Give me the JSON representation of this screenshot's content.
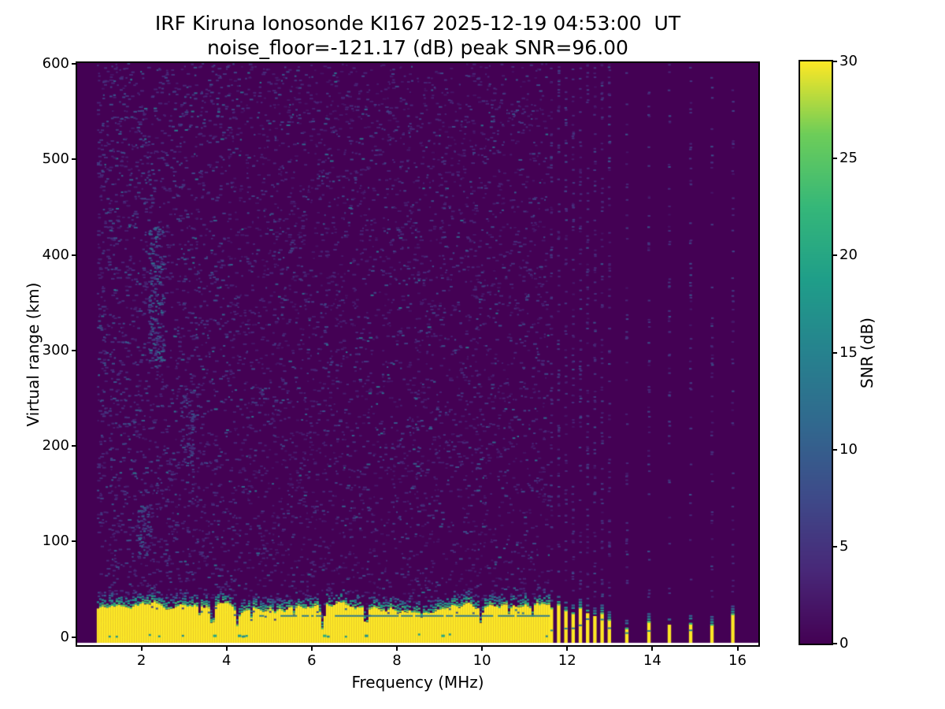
{
  "header": {
    "title_line1": "IRF Kiruna Ionosonde KI167 2025-12-19 04:53:00  UT",
    "title_line2": "noise_floor=-121.17 (dB) peak SNR=96.00"
  },
  "chart_data": {
    "type": "heatmap",
    "title": "IRF Kiruna Ionosonde KI167 2025-12-19 04:53:00  UT",
    "subtitle": "noise_floor=-121.17 (dB) peak SNR=96.00",
    "station": "KI167",
    "instrument": "IRF Kiruna Ionosonde",
    "timestamp_ut": "2025-12-19 04:53:00 UT",
    "noise_floor_db": -121.17,
    "peak_snr_db": 96.0,
    "xlabel": "Frequency (MHz)",
    "ylabel": "Virtual range (km)",
    "colorbar_label": "SNR (dB)",
    "xlim": [
      0.49,
      16.49
    ],
    "ylim": [
      -8.5,
      601
    ],
    "clim": [
      0,
      30
    ],
    "x_ticks": [
      2,
      4,
      6,
      8,
      10,
      12,
      14,
      16
    ],
    "y_ticks": [
      0,
      100,
      200,
      300,
      400,
      500,
      600
    ],
    "colorbar_ticks": [
      0,
      5,
      10,
      15,
      20,
      25,
      30
    ],
    "grid": false,
    "colormap": {
      "name": "viridis",
      "anchors": [
        [
          68,
          1,
          84
        ],
        [
          72,
          40,
          120
        ],
        [
          62,
          74,
          137
        ],
        [
          49,
          104,
          142
        ],
        [
          38,
          130,
          142
        ],
        [
          31,
          158,
          137
        ],
        [
          53,
          183,
          121
        ],
        [
          109,
          205,
          89
        ],
        [
          253,
          231,
          37
        ]
      ],
      "background_hex": "#440154",
      "peak_hex": "#fde725"
    },
    "sweep": {
      "data_start_mhz": 0.95,
      "continuous_sweep_end_mhz": 11.55,
      "mesh_bottom_km": -6,
      "white_gap_below_data": true
    },
    "ground_echo": {
      "freq_span_mhz": [
        0.95,
        11.55
      ],
      "top_km_mean": 31,
      "top_km_range": [
        25,
        39
      ],
      "snr_db": 30,
      "transition_thickness_km": 16,
      "teal_line": {
        "km": 23,
        "freq_span_mhz": [
          4.6,
          11.55
        ],
        "snr_db": 13.5
      },
      "notches": [
        {
          "f_mhz": 3.33,
          "min_km": 22,
          "halfwidth_mhz": 0.05
        },
        {
          "f_mhz": 3.64,
          "min_km": 7,
          "halfwidth_mhz": 0.09
        },
        {
          "f_mhz": 4.23,
          "min_km": 10,
          "halfwidth_mhz": 0.07
        },
        {
          "f_mhz": 4.55,
          "min_km": 19,
          "halfwidth_mhz": 0.05
        },
        {
          "f_mhz": 5.55,
          "min_km": 22,
          "halfwidth_mhz": 0.05
        },
        {
          "f_mhz": 6.23,
          "min_km": 6,
          "halfwidth_mhz": 0.09
        },
        {
          "f_mhz": 7.25,
          "min_km": 8,
          "halfwidth_mhz": 0.08
        },
        {
          "f_mhz": 8.55,
          "min_km": 20,
          "halfwidth_mhz": 0.05
        },
        {
          "f_mhz": 9.95,
          "min_km": 12,
          "halfwidth_mhz": 0.07
        },
        {
          "f_mhz": 10.62,
          "min_km": 21,
          "halfwidth_mhz": 0.05
        },
        {
          "f_mhz": 11.15,
          "min_km": 19,
          "halfwidth_mhz": 0.05
        }
      ],
      "bottom_flecks_mhz": [
        3.72,
        4.3,
        6.3,
        7.28,
        9.08
      ]
    },
    "rfi_channels": {
      "dense": [
        {
          "f_mhz": 11.63,
          "top_km": 30
        },
        {
          "f_mhz": 11.8,
          "top_km": 34
        },
        {
          "f_mhz": 11.97,
          "top_km": 28
        },
        {
          "f_mhz": 12.14,
          "top_km": 25
        },
        {
          "f_mhz": 12.31,
          "top_km": 31
        },
        {
          "f_mhz": 12.48,
          "top_km": 25
        },
        {
          "f_mhz": 12.65,
          "top_km": 22
        },
        {
          "f_mhz": 12.82,
          "top_km": 25
        },
        {
          "f_mhz": 12.99,
          "top_km": 18
        }
      ],
      "sparse": [
        {
          "f_mhz": 13.4,
          "top_km": 9
        },
        {
          "f_mhz": 13.92,
          "top_km": 16
        },
        {
          "f_mhz": 14.4,
          "top_km": 13
        },
        {
          "f_mhz": 14.9,
          "top_km": 14
        },
        {
          "f_mhz": 15.4,
          "top_km": 13
        },
        {
          "f_mhz": 15.89,
          "top_km": 24
        }
      ]
    },
    "noise": {
      "count": 6500,
      "low_freq_bias_exp": 1.15,
      "value_db_weights": [
        {
          "p": 0.7,
          "min": 1.5,
          "max": 4.0
        },
        {
          "p": 0.25,
          "min": 4.0,
          "max": 8.0
        },
        {
          "p": 0.05,
          "min": 8.0,
          "max": 13.0
        }
      ],
      "channel_dash_count_dense": 68,
      "channel_dash_count_sparse": 44,
      "smudges": [
        {
          "f_mhz": [
            2.15,
            2.5
          ],
          "km": [
            290,
            430
          ],
          "count": 170,
          "db": [
            4,
            13
          ]
        },
        {
          "f_mhz": [
            1.9,
            2.2
          ],
          "km": [
            85,
            140
          ],
          "count": 55,
          "db": [
            4,
            11
          ]
        },
        {
          "f_mhz": [
            2.9,
            3.2
          ],
          "km": [
            180,
            260
          ],
          "count": 60,
          "db": [
            3,
            9
          ]
        }
      ]
    }
  }
}
